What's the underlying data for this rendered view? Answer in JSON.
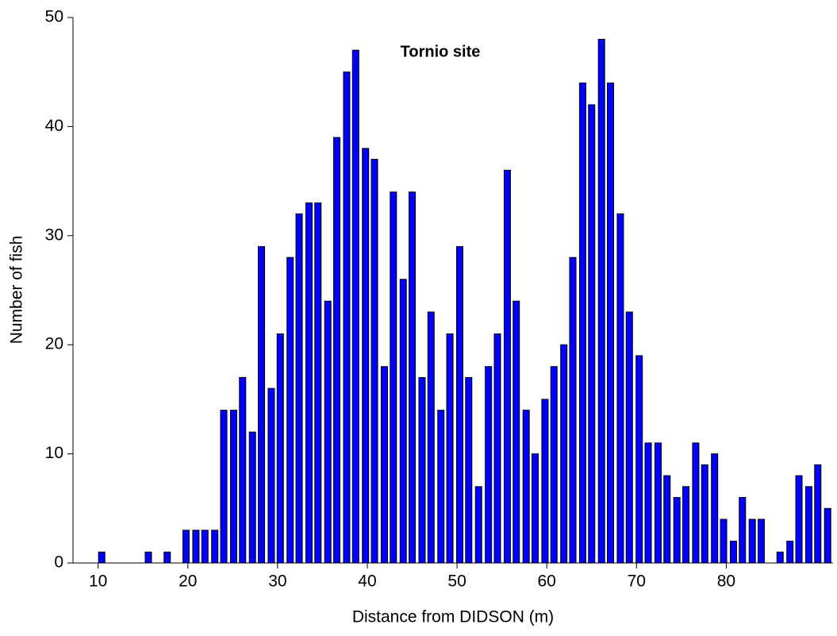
{
  "chart_data": {
    "type": "bar",
    "title": "Tornio site",
    "xlabel": "Distance from DIDSON (m)",
    "ylabel": "Number of fish",
    "x": [
      10.4,
      15.6,
      17.7,
      19.8,
      20.9,
      21.9,
      23.0,
      24.0,
      25.1,
      26.1,
      27.2,
      28.2,
      29.3,
      30.3,
      31.4,
      32.4,
      33.5,
      34.5,
      35.6,
      36.6,
      37.7,
      38.7,
      39.8,
      40.8,
      41.9,
      42.9,
      44.0,
      45.0,
      46.1,
      47.1,
      48.2,
      49.2,
      50.3,
      51.3,
      52.4,
      53.5,
      54.5,
      55.6,
      56.6,
      57.7,
      58.7,
      59.8,
      60.8,
      61.9,
      62.9,
      64.0,
      65.0,
      66.1,
      67.1,
      68.2,
      69.2,
      70.3,
      71.3,
      72.4,
      73.4,
      74.5,
      75.5,
      76.6,
      77.6,
      78.7,
      79.7,
      80.8,
      81.8,
      82.9,
      83.9,
      86.0,
      87.1,
      88.1,
      89.2,
      90.2,
      91.3
    ],
    "values": [
      1,
      1,
      1,
      3,
      3,
      3,
      3,
      14,
      14,
      17,
      12,
      29,
      16,
      21,
      28,
      32,
      33,
      33,
      24,
      39,
      45,
      47,
      38,
      37,
      18,
      34,
      26,
      34,
      17,
      23,
      14,
      21,
      29,
      17,
      7,
      18,
      21,
      36,
      24,
      14,
      10,
      15,
      18,
      20,
      28,
      44,
      42,
      48,
      44,
      32,
      23,
      19,
      11,
      11,
      8,
      6,
      7,
      11,
      9,
      10,
      4,
      2,
      6,
      4,
      4,
      1,
      2,
      8,
      7,
      9,
      5
    ],
    "color": "#0000ff",
    "xlim": [
      7.2,
      91.9
    ],
    "xticks": [
      10,
      20,
      30,
      40,
      50,
      60,
      70,
      80
    ],
    "ylim": [
      0,
      50
    ],
    "yticks": [
      0,
      10,
      20,
      30,
      40,
      50
    ],
    "grid": false
  }
}
